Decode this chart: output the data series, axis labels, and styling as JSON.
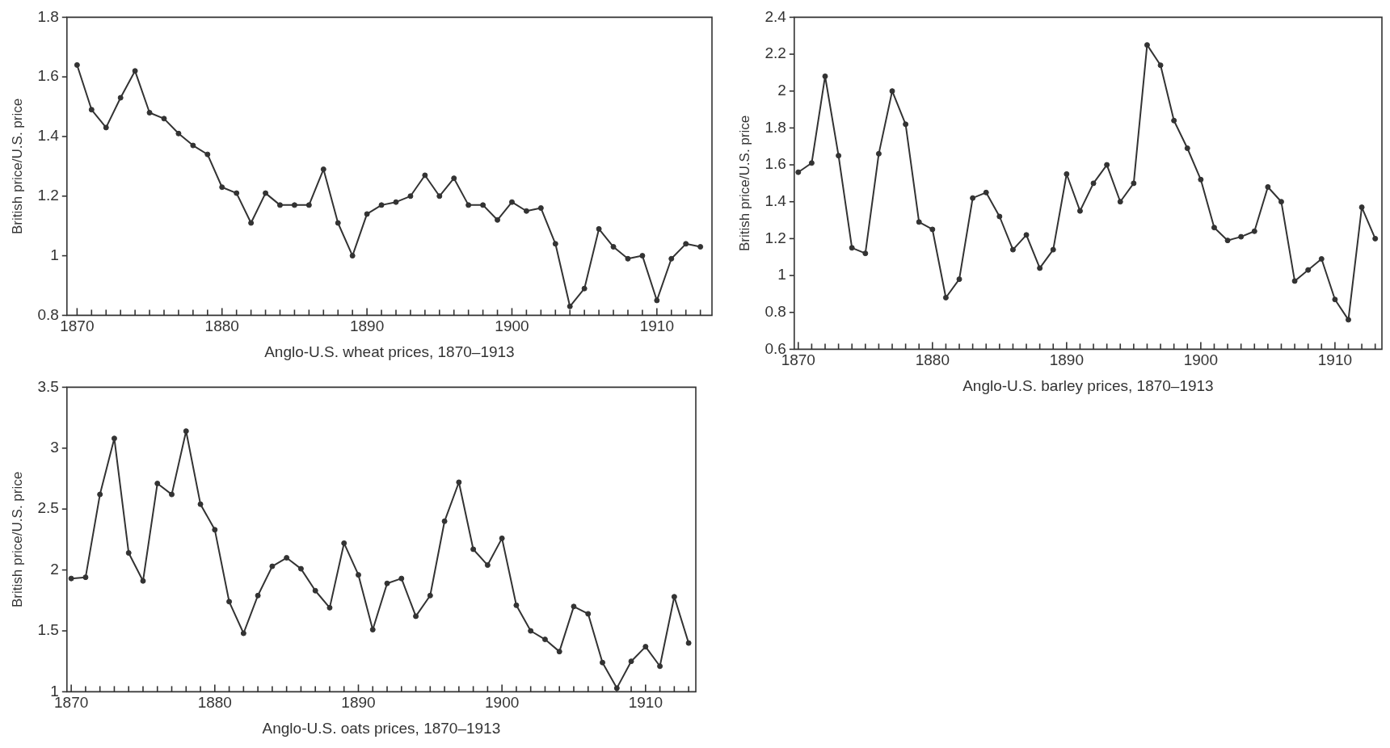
{
  "chart_data": [
    {
      "type": "line",
      "xlabel": "Anglo-U.S. wheat prices, 1870–1913",
      "ylabel": "British price/U.S. price",
      "x": [
        1870,
        1871,
        1872,
        1873,
        1874,
        1875,
        1876,
        1877,
        1878,
        1879,
        1880,
        1881,
        1882,
        1883,
        1884,
        1885,
        1886,
        1887,
        1888,
        1889,
        1890,
        1891,
        1892,
        1893,
        1894,
        1895,
        1896,
        1897,
        1898,
        1899,
        1900,
        1901,
        1902,
        1903,
        1904,
        1905,
        1906,
        1907,
        1908,
        1909,
        1910,
        1911,
        1912,
        1913
      ],
      "series": [
        {
          "color": "#333333",
          "values": [
            1.64,
            1.49,
            1.43,
            1.53,
            1.62,
            1.48,
            1.46,
            1.41,
            1.37,
            1.34,
            1.23,
            1.21,
            1.11,
            1.21,
            1.17,
            1.17,
            1.17,
            1.29,
            1.11,
            1.0,
            1.14,
            1.17,
            1.18,
            1.2,
            1.27,
            1.2,
            1.26,
            1.17,
            1.17,
            1.12,
            1.18,
            1.15,
            1.16,
            1.04,
            0.83,
            0.89,
            1.09,
            1.03,
            0.99,
            1.0,
            0.85,
            0.99,
            1.04,
            1.03
          ]
        }
      ],
      "xlim": [
        1869.3,
        1913.8
      ],
      "ylim": [
        0.8,
        1.8
      ],
      "yticks": [
        0.8,
        1,
        1.2,
        1.4,
        1.6,
        1.8
      ],
      "xticks": [
        1870,
        {
          "value": 1871,
          "label": null
        },
        {
          "value": 1872,
          "label": null
        },
        {
          "value": 1873,
          "label": null
        },
        {
          "value": 1874,
          "label": null
        },
        {
          "value": 1875,
          "label": null
        },
        {
          "value": 1876,
          "label": null
        },
        {
          "value": 1877,
          "label": null
        },
        {
          "value": 1878,
          "label": null
        },
        {
          "value": 1879,
          "label": null
        },
        1880,
        {
          "value": 1881,
          "label": null
        },
        {
          "value": 1882,
          "label": null
        },
        {
          "value": 1883,
          "label": null
        },
        {
          "value": 1884,
          "label": null
        },
        {
          "value": 1885,
          "label": null
        },
        {
          "value": 1886,
          "label": null
        },
        {
          "value": 1887,
          "label": null
        },
        {
          "value": 1888,
          "label": null
        },
        {
          "value": 1889,
          "label": null
        },
        1890,
        {
          "value": 1891,
          "label": null
        },
        {
          "value": 1892,
          "label": null
        },
        {
          "value": 1893,
          "label": null
        },
        {
          "value": 1894,
          "label": null
        },
        {
          "value": 1895,
          "label": null
        },
        {
          "value": 1896,
          "label": null
        },
        {
          "value": 1897,
          "label": null
        },
        {
          "value": 1898,
          "label": null
        },
        {
          "value": 1899,
          "label": null
        },
        1900,
        {
          "value": 1901,
          "label": null
        },
        {
          "value": 1902,
          "label": null
        },
        {
          "value": 1903,
          "label": null
        },
        {
          "value": 1904,
          "label": null
        },
        {
          "value": 1905,
          "label": null
        },
        {
          "value": 1906,
          "label": null
        },
        {
          "value": 1907,
          "label": null
        },
        {
          "value": 1908,
          "label": null
        },
        {
          "value": 1909,
          "label": null
        },
        1910,
        {
          "value": 1911,
          "label": null
        },
        {
          "value": 1912,
          "label": null
        },
        {
          "value": 1913,
          "label": null
        }
      ],
      "grid": false,
      "legend": false,
      "marker": "circle",
      "line_style": "solid"
    },
    {
      "type": "line",
      "xlabel": "Anglo-U.S. barley prices, 1870–1913",
      "ylabel": "British price/U.S. price",
      "x": [
        1870,
        1871,
        1872,
        1873,
        1874,
        1875,
        1876,
        1877,
        1878,
        1879,
        1880,
        1881,
        1882,
        1883,
        1884,
        1885,
        1886,
        1887,
        1888,
        1889,
        1890,
        1891,
        1892,
        1893,
        1894,
        1895,
        1896,
        1897,
        1898,
        1899,
        1900,
        1901,
        1902,
        1903,
        1904,
        1905,
        1906,
        1907,
        1908,
        1909,
        1910,
        1911,
        1912,
        1913
      ],
      "series": [
        {
          "color": "#333333",
          "values": [
            1.56,
            1.61,
            2.08,
            1.65,
            1.15,
            1.12,
            1.66,
            2.0,
            1.82,
            1.29,
            1.25,
            0.88,
            0.98,
            1.42,
            1.45,
            1.32,
            1.14,
            1.22,
            1.04,
            1.14,
            1.55,
            1.35,
            1.5,
            1.6,
            1.4,
            1.5,
            2.25,
            2.14,
            1.84,
            1.69,
            1.52,
            1.26,
            1.19,
            1.21,
            1.24,
            1.48,
            1.4,
            0.97,
            1.03,
            1.09,
            0.87,
            0.76,
            1.37,
            1.2
          ]
        }
      ],
      "xlim": [
        1869.7,
        1913.5
      ],
      "ylim": [
        0.6,
        2.4
      ],
      "yticks": [
        0.6,
        0.8,
        1,
        1.2,
        1.4,
        1.6,
        1.8,
        2,
        2.2,
        2.4
      ],
      "xticks": [
        1870,
        {
          "value": 1871,
          "label": null
        },
        {
          "value": 1872,
          "label": null
        },
        {
          "value": 1873,
          "label": null
        },
        {
          "value": 1874,
          "label": null
        },
        {
          "value": 1875,
          "label": null
        },
        {
          "value": 1876,
          "label": null
        },
        {
          "value": 1877,
          "label": null
        },
        {
          "value": 1878,
          "label": null
        },
        {
          "value": 1879,
          "label": null
        },
        1880,
        {
          "value": 1881,
          "label": null
        },
        {
          "value": 1882,
          "label": null
        },
        {
          "value": 1883,
          "label": null
        },
        {
          "value": 1884,
          "label": null
        },
        {
          "value": 1885,
          "label": null
        },
        {
          "value": 1886,
          "label": null
        },
        {
          "value": 1887,
          "label": null
        },
        {
          "value": 1888,
          "label": null
        },
        {
          "value": 1889,
          "label": null
        },
        1890,
        {
          "value": 1891,
          "label": null
        },
        {
          "value": 1892,
          "label": null
        },
        {
          "value": 1893,
          "label": null
        },
        {
          "value": 1894,
          "label": null
        },
        {
          "value": 1895,
          "label": null
        },
        {
          "value": 1896,
          "label": null
        },
        {
          "value": 1897,
          "label": null
        },
        {
          "value": 1898,
          "label": null
        },
        {
          "value": 1899,
          "label": null
        },
        1900,
        {
          "value": 1901,
          "label": null
        },
        {
          "value": 1902,
          "label": null
        },
        {
          "value": 1903,
          "label": null
        },
        {
          "value": 1904,
          "label": null
        },
        {
          "value": 1905,
          "label": null
        },
        {
          "value": 1906,
          "label": null
        },
        {
          "value": 1907,
          "label": null
        },
        {
          "value": 1908,
          "label": null
        },
        {
          "value": 1909,
          "label": null
        },
        1910,
        {
          "value": 1911,
          "label": null
        },
        {
          "value": 1912,
          "label": null
        },
        {
          "value": 1913,
          "label": null
        }
      ],
      "grid": false,
      "legend": false,
      "marker": "circle",
      "line_style": "solid"
    },
    {
      "type": "line",
      "xlabel": "Anglo-U.S. oats prices, 1870–1913",
      "ylabel": "British price/U.S. price",
      "x": [
        1870,
        1871,
        1872,
        1873,
        1874,
        1875,
        1876,
        1877,
        1878,
        1879,
        1880,
        1881,
        1882,
        1883,
        1884,
        1885,
        1886,
        1887,
        1888,
        1889,
        1890,
        1891,
        1892,
        1893,
        1894,
        1895,
        1896,
        1897,
        1898,
        1899,
        1900,
        1901,
        1902,
        1903,
        1904,
        1905,
        1906,
        1907,
        1908,
        1909,
        1910,
        1911,
        1912,
        1913
      ],
      "series": [
        {
          "color": "#333333",
          "values": [
            1.93,
            1.94,
            2.62,
            3.08,
            2.14,
            1.91,
            2.71,
            2.62,
            3.14,
            2.54,
            2.33,
            1.74,
            1.48,
            1.79,
            2.03,
            2.1,
            2.01,
            1.83,
            1.69,
            2.22,
            1.96,
            1.51,
            1.89,
            1.93,
            1.62,
            1.79,
            2.4,
            2.72,
            2.17,
            2.04,
            2.26,
            1.71,
            1.5,
            1.43,
            1.33,
            1.7,
            1.64,
            1.24,
            1.03,
            1.25,
            1.37,
            1.21,
            1.78,
            1.4
          ]
        }
      ],
      "xlim": [
        1869.7,
        1913.5
      ],
      "ylim": [
        1,
        3.5
      ],
      "yticks": [
        1,
        1.5,
        2,
        2.5,
        3,
        3.5
      ],
      "xticks": [
        1870,
        {
          "value": 1871,
          "label": null
        },
        {
          "value": 1872,
          "label": null
        },
        {
          "value": 1873,
          "label": null
        },
        {
          "value": 1874,
          "label": null
        },
        {
          "value": 1875,
          "label": null
        },
        {
          "value": 1876,
          "label": null
        },
        {
          "value": 1877,
          "label": null
        },
        {
          "value": 1878,
          "label": null
        },
        {
          "value": 1879,
          "label": null
        },
        1880,
        {
          "value": 1881,
          "label": null
        },
        {
          "value": 1882,
          "label": null
        },
        {
          "value": 1883,
          "label": null
        },
        {
          "value": 1884,
          "label": null
        },
        {
          "value": 1885,
          "label": null
        },
        {
          "value": 1886,
          "label": null
        },
        {
          "value": 1887,
          "label": null
        },
        {
          "value": 1888,
          "label": null
        },
        {
          "value": 1889,
          "label": null
        },
        1890,
        {
          "value": 1891,
          "label": null
        },
        {
          "value": 1892,
          "label": null
        },
        {
          "value": 1893,
          "label": null
        },
        {
          "value": 1894,
          "label": null
        },
        {
          "value": 1895,
          "label": null
        },
        {
          "value": 1896,
          "label": null
        },
        {
          "value": 1897,
          "label": null
        },
        {
          "value": 1898,
          "label": null
        },
        {
          "value": 1899,
          "label": null
        },
        1900,
        {
          "value": 1901,
          "label": null
        },
        {
          "value": 1902,
          "label": null
        },
        {
          "value": 1903,
          "label": null
        },
        {
          "value": 1904,
          "label": null
        },
        {
          "value": 1905,
          "label": null
        },
        {
          "value": 1906,
          "label": null
        },
        {
          "value": 1907,
          "label": null
        },
        {
          "value": 1908,
          "label": null
        },
        {
          "value": 1909,
          "label": null
        },
        1910,
        {
          "value": 1911,
          "label": null
        },
        {
          "value": 1912,
          "label": null
        },
        {
          "value": 1913,
          "label": null
        }
      ],
      "grid": false,
      "legend": false,
      "marker": "circle",
      "line_style": "solid"
    }
  ]
}
